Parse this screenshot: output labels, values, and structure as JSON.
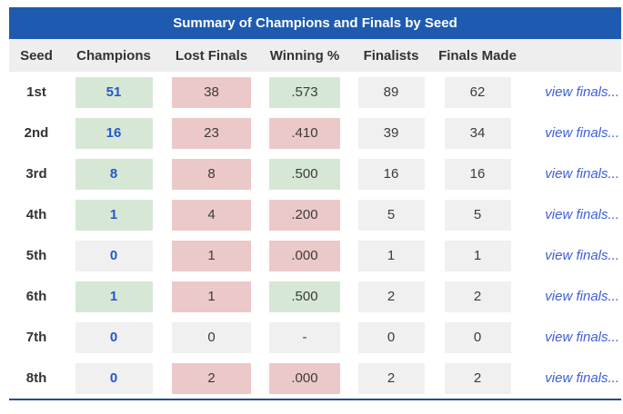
{
  "title": "Summary of Champions and Finals by Seed",
  "columns": [
    "Seed",
    "Champions",
    "Lost Finals",
    "Winning %",
    "Finalists",
    "Finals Made"
  ],
  "view_finals_label": "view finals...",
  "colors": {
    "header_blue": "#1e5bb0",
    "bottom_line": "#1d4f8c",
    "green": "#d6e8d5",
    "pink": "#ecc9c9",
    "gray": "#f0f0f0",
    "headrow_gray": "#eeeeee",
    "link_blue": "#3e5ed9",
    "value_blue": "#2457cd"
  },
  "rows": [
    {
      "seed": "1st",
      "champions": {
        "value": "51",
        "bg": "green"
      },
      "lost_finals": {
        "value": "38",
        "bg": "pink"
      },
      "winning_pct": {
        "value": ".573",
        "bg": "green"
      },
      "finalists": "89",
      "finals_made": "62"
    },
    {
      "seed": "2nd",
      "champions": {
        "value": "16",
        "bg": "green"
      },
      "lost_finals": {
        "value": "23",
        "bg": "pink"
      },
      "winning_pct": {
        "value": ".410",
        "bg": "pink"
      },
      "finalists": "39",
      "finals_made": "34"
    },
    {
      "seed": "3rd",
      "champions": {
        "value": "8",
        "bg": "green"
      },
      "lost_finals": {
        "value": "8",
        "bg": "pink"
      },
      "winning_pct": {
        "value": ".500",
        "bg": "green"
      },
      "finalists": "16",
      "finals_made": "16"
    },
    {
      "seed": "4th",
      "champions": {
        "value": "1",
        "bg": "green"
      },
      "lost_finals": {
        "value": "4",
        "bg": "pink"
      },
      "winning_pct": {
        "value": ".200",
        "bg": "pink"
      },
      "finalists": "5",
      "finals_made": "5"
    },
    {
      "seed": "5th",
      "champions": {
        "value": "0",
        "bg": "gray"
      },
      "lost_finals": {
        "value": "1",
        "bg": "pink"
      },
      "winning_pct": {
        "value": ".000",
        "bg": "pink"
      },
      "finalists": "1",
      "finals_made": "1"
    },
    {
      "seed": "6th",
      "champions": {
        "value": "1",
        "bg": "green"
      },
      "lost_finals": {
        "value": "1",
        "bg": "pink"
      },
      "winning_pct": {
        "value": ".500",
        "bg": "green"
      },
      "finalists": "2",
      "finals_made": "2"
    },
    {
      "seed": "7th",
      "champions": {
        "value": "0",
        "bg": "gray"
      },
      "lost_finals": {
        "value": "0",
        "bg": "gray"
      },
      "winning_pct": {
        "value": "-",
        "bg": "gray"
      },
      "finalists": "0",
      "finals_made": "0"
    },
    {
      "seed": "8th",
      "champions": {
        "value": "0",
        "bg": "gray"
      },
      "lost_finals": {
        "value": "2",
        "bg": "pink"
      },
      "winning_pct": {
        "value": ".000",
        "bg": "pink"
      },
      "finalists": "2",
      "finals_made": "2"
    }
  ]
}
